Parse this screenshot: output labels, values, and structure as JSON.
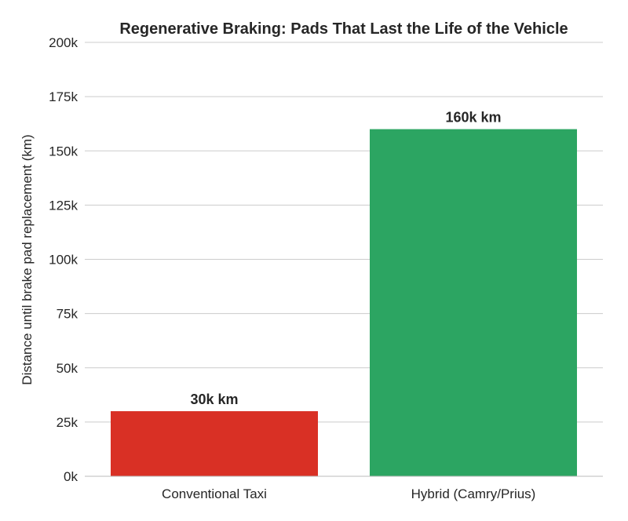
{
  "chart_data": {
    "type": "bar",
    "title": "Regenerative Braking: Pads That Last the Life of the Vehicle",
    "xlabel": "",
    "ylabel": "Distance until brake pad replacement (km)",
    "categories": [
      "Conventional Taxi",
      "Hybrid (Camry/Prius)"
    ],
    "values": [
      30000,
      160000
    ],
    "bar_labels": [
      "30k km",
      "160k km"
    ],
    "colors": [
      "#d93025",
      "#2ca562"
    ],
    "ylim": [
      0,
      200000
    ],
    "yticks": [
      0,
      25000,
      50000,
      75000,
      100000,
      125000,
      150000,
      175000,
      200000
    ],
    "ytick_labels": [
      "0k",
      "25k",
      "50k",
      "75k",
      "100k",
      "125k",
      "150k",
      "175k",
      "200k"
    ],
    "grid": true,
    "legend": "none"
  }
}
